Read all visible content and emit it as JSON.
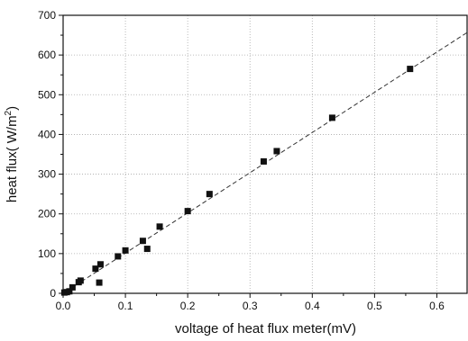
{
  "chart_data": {
    "type": "scatter",
    "title": "",
    "xlabel": "voltage of heat flux meter(mV)",
    "ylabel_main": "heat flux( W/m",
    "ylabel_sup": "2",
    "ylabel_tail": ")",
    "xlim": [
      0.0,
      0.65
    ],
    "ylim": [
      0,
      700
    ],
    "x_ticks": [
      0.0,
      0.1,
      0.2,
      0.3,
      0.4,
      0.5,
      0.6
    ],
    "x_tick_labels": [
      "0.0",
      "0.1",
      "0.2",
      "0.3",
      "0.4",
      "0.5",
      "0.6"
    ],
    "y_ticks": [
      0,
      100,
      200,
      300,
      400,
      500,
      600,
      700
    ],
    "y_tick_labels": [
      "0",
      "100",
      "200",
      "300",
      "400",
      "500",
      "600",
      "700"
    ],
    "grid": true,
    "legend": false,
    "marker_color": "#111111",
    "fit_line_color": "#333333",
    "series": [
      {
        "x": [
          0.002,
          0.006,
          0.01,
          0.015,
          0.025,
          0.028,
          0.052,
          0.058,
          0.06,
          0.088,
          0.1,
          0.128,
          0.135,
          0.155,
          0.2,
          0.235,
          0.322,
          0.343,
          0.432,
          0.557
        ],
        "y": [
          2,
          3,
          5,
          15,
          28,
          32,
          62,
          27,
          73,
          93,
          108,
          132,
          112,
          168,
          207,
          250,
          332,
          358,
          442,
          565
        ]
      }
    ],
    "fit_line": {
      "x": [
        0.0,
        0.65
      ],
      "y": [
        0,
        658
      ]
    }
  }
}
